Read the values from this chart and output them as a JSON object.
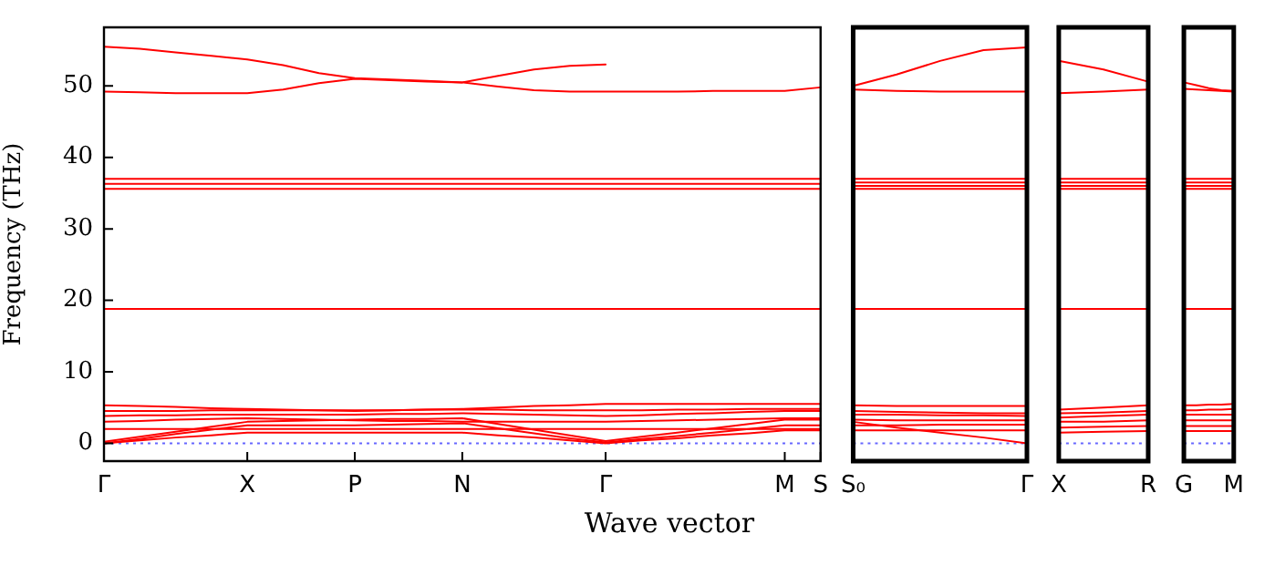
{
  "chart_data": [
    {
      "type": "line",
      "ylabel": "Frequency (THz)",
      "xlabel": "Wave vector",
      "marker": "none",
      "grid": false,
      "ylim": [
        -2.5,
        58.2
      ],
      "yticks": [
        0,
        10,
        20,
        30,
        40,
        50
      ],
      "categories": [
        "Γ",
        null,
        null,
        null,
        "X",
        null,
        null,
        "P",
        null,
        null,
        "N",
        null,
        null,
        null,
        "Γ",
        null,
        null,
        null,
        null,
        "M",
        "S"
      ],
      "ref_lines": [
        {
          "axis": "y",
          "value": 0,
          "label": null,
          "color": "#6666ff",
          "line_style": "dotted"
        }
      ],
      "series": [
        {
          "color": "#ff0000",
          "values": [
            55.5,
            55.2,
            54.7,
            54.2,
            53.7,
            52.9,
            51.8,
            51.1,
            50.9,
            50.7,
            50.5,
            51.4,
            52.3,
            52.8,
            53.0,
            null,
            null,
            null,
            null,
            null,
            null
          ]
        },
        {
          "color": "#ff0000",
          "values": [
            49.2,
            49.1,
            49.0,
            49.0,
            49.0,
            49.5,
            50.4,
            51.0,
            50.8,
            50.6,
            50.5,
            49.9,
            49.4,
            49.2,
            49.2,
            49.2,
            49.2,
            49.3,
            49.3,
            49.3,
            49.8
          ]
        },
        {
          "color": "#ff0000",
          "values": [
            37,
            37,
            37,
            37,
            37,
            37,
            37,
            37,
            37,
            37,
            37,
            37,
            37,
            37,
            37,
            37,
            37,
            37,
            37,
            37,
            37
          ]
        },
        {
          "color": "#ff0000",
          "values": [
            36.3,
            36.3,
            36.3,
            36.3,
            36.3,
            36.3,
            36.3,
            36.3,
            36.3,
            36.3,
            36.3,
            36.3,
            36.3,
            36.3,
            36.3,
            36.3,
            36.3,
            36.3,
            36.3,
            36.3,
            36.3
          ]
        },
        {
          "color": "#ff0000",
          "values": [
            35.6,
            35.6,
            35.6,
            35.6,
            35.6,
            35.6,
            35.6,
            35.6,
            35.6,
            35.6,
            35.6,
            35.6,
            35.6,
            35.6,
            35.6,
            35.6,
            35.6,
            35.6,
            35.6,
            35.6,
            35.6
          ]
        },
        {
          "color": "#ff0000",
          "values": [
            18.8,
            18.8,
            18.8,
            18.8,
            18.8,
            18.8,
            18.8,
            18.8,
            18.8,
            18.8,
            18.8,
            18.8,
            18.8,
            18.8,
            18.8,
            18.8,
            18.8,
            18.8,
            18.8,
            18.8,
            18.8
          ]
        },
        {
          "color": "#ff0000",
          "values": [
            0,
            0.4,
            0.8,
            1.1,
            1.5,
            1.5,
            1.5,
            1.5,
            1.5,
            1.5,
            1.5,
            1.1,
            0.8,
            0.4,
            0,
            0.4,
            0.7,
            1.1,
            1.4,
            1.8,
            1.8
          ]
        },
        {
          "color": "#ff0000",
          "values": [
            0,
            0.6,
            1.3,
            1.9,
            2.5,
            2.5,
            2.5,
            2.5,
            2.6,
            2.7,
            2.8,
            2.1,
            1.4,
            0.7,
            0.1,
            0.6,
            1.0,
            1.5,
            2.0,
            2.5,
            2.5
          ]
        },
        {
          "color": "#ff0000",
          "values": [
            0.2,
            0.9,
            1.6,
            2.3,
            3.0,
            3.1,
            3.2,
            3.3,
            3.4,
            3.4,
            3.5,
            2.7,
            1.9,
            1.1,
            0.3,
            0.9,
            1.5,
            2.1,
            2.7,
            3.3,
            3.3
          ]
        },
        {
          "color": "#ff0000",
          "values": [
            2.0,
            2.0,
            2.0,
            2.0,
            2.0,
            2.0,
            2.0,
            2.0,
            2.0,
            2.0,
            2.0,
            2.0,
            2.0,
            2.0,
            2.0,
            2.0,
            2.0,
            2.0,
            2.0,
            2.0,
            2.0
          ]
        },
        {
          "color": "#ff0000",
          "values": [
            3.0,
            3.1,
            3.3,
            3.4,
            3.5,
            3.4,
            3.3,
            3.2,
            3.1,
            3.1,
            3.0,
            3.0,
            3.0,
            3.0,
            3.0,
            3.1,
            3.2,
            3.3,
            3.4,
            3.5,
            3.5
          ]
        },
        {
          "color": "#ff0000",
          "values": [
            3.8,
            3.9,
            3.9,
            4.0,
            4.0,
            4.0,
            4.0,
            4.0,
            4.1,
            4.1,
            4.2,
            4.1,
            4.0,
            3.9,
            3.8,
            3.9,
            4.1,
            4.2,
            4.4,
            4.5,
            4.5
          ]
        },
        {
          "color": "#ff0000",
          "values": [
            4.5,
            4.5,
            4.5,
            4.6,
            4.6,
            4.6,
            4.6,
            4.6,
            4.6,
            4.7,
            4.7,
            4.7,
            4.6,
            4.6,
            4.6,
            4.6,
            4.7,
            4.7,
            4.8,
            4.8,
            4.8
          ]
        },
        {
          "color": "#ff0000",
          "values": [
            5.3,
            5.2,
            5.1,
            4.9,
            4.8,
            4.7,
            4.6,
            4.5,
            4.6,
            4.7,
            4.8,
            5.0,
            5.2,
            5.3,
            5.5,
            5.5,
            5.5,
            5.5,
            5.5,
            5.5,
            5.5
          ]
        }
      ]
    },
    {
      "type": "line",
      "marker": "none",
      "grid": false,
      "tick_labels": "x",
      "ylim": [
        -2.5,
        58.2
      ],
      "categories": [
        "S₀",
        null,
        null,
        null,
        "Γ"
      ],
      "ref_lines": [
        {
          "axis": "y",
          "value": 0,
          "label": null,
          "color": "#6666ff",
          "line_style": "dotted"
        }
      ],
      "series": [
        {
          "color": "#ff0000",
          "values": [
            50.0,
            51.6,
            53.5,
            55.0,
            55.4
          ]
        },
        {
          "color": "#ff0000",
          "values": [
            49.5,
            49.3,
            49.2,
            49.2,
            49.2
          ]
        },
        {
          "color": "#ff0000",
          "values": [
            37,
            37,
            37,
            37,
            37
          ]
        },
        {
          "color": "#ff0000",
          "values": [
            36.5,
            36.5,
            36.5,
            36.5,
            36.5
          ]
        },
        {
          "color": "#ff0000",
          "values": [
            36,
            36,
            36,
            36,
            36
          ]
        },
        {
          "color": "#ff0000",
          "values": [
            35.6,
            35.6,
            35.6,
            35.6,
            35.6
          ]
        },
        {
          "color": "#ff0000",
          "values": [
            18.8,
            18.8,
            18.8,
            18.8,
            18.8
          ]
        },
        {
          "color": "#ff0000",
          "values": [
            3.0,
            2.2,
            1.5,
            0.8,
            0
          ]
        },
        {
          "color": "#ff0000",
          "values": [
            1.8,
            1.8,
            1.8,
            1.8,
            1.8
          ]
        },
        {
          "color": "#ff0000",
          "values": [
            2.5,
            2.5,
            2.6,
            2.6,
            2.6
          ]
        },
        {
          "color": "#ff0000",
          "values": [
            3.3,
            3.2,
            3.2,
            3.2,
            3.2
          ]
        },
        {
          "color": "#ff0000",
          "values": [
            4.0,
            4.0,
            3.9,
            3.9,
            3.8
          ]
        },
        {
          "color": "#ff0000",
          "values": [
            4.5,
            4.4,
            4.3,
            4.2,
            4.2
          ]
        },
        {
          "color": "#ff0000",
          "values": [
            5.3,
            5.2,
            5.2,
            5.2,
            5.2
          ]
        }
      ]
    },
    {
      "type": "line",
      "marker": "none",
      "grid": false,
      "tick_labels": "x",
      "ylim": [
        -2.5,
        58.2
      ],
      "categories": [
        "X",
        null,
        "R"
      ],
      "ref_lines": [
        {
          "axis": "y",
          "value": 0,
          "label": null,
          "color": "#6666ff",
          "line_style": "dotted"
        }
      ],
      "series": [
        {
          "color": "#ff0000",
          "values": [
            53.5,
            52.3,
            50.6
          ]
        },
        {
          "color": "#ff0000",
          "values": [
            49.0,
            49.2,
            49.5
          ]
        },
        {
          "color": "#ff0000",
          "values": [
            37,
            37,
            37
          ]
        },
        {
          "color": "#ff0000",
          "values": [
            36.5,
            36.5,
            36.5
          ]
        },
        {
          "color": "#ff0000",
          "values": [
            36,
            36,
            36
          ]
        },
        {
          "color": "#ff0000",
          "values": [
            35.6,
            35.6,
            35.6
          ]
        },
        {
          "color": "#ff0000",
          "values": [
            18.8,
            18.8,
            18.8
          ]
        },
        {
          "color": "#ff0000",
          "values": [
            1.5,
            1.6,
            1.7
          ]
        },
        {
          "color": "#ff0000",
          "values": [
            2.2,
            2.3,
            2.4
          ]
        },
        {
          "color": "#ff0000",
          "values": [
            3.0,
            3.0,
            3.2
          ]
        },
        {
          "color": "#ff0000",
          "values": [
            3.6,
            3.8,
            4.0
          ]
        },
        {
          "color": "#ff0000",
          "values": [
            4.2,
            4.3,
            4.5
          ]
        },
        {
          "color": "#ff0000",
          "values": [
            4.7,
            5.0,
            5.3
          ]
        }
      ]
    },
    {
      "type": "line",
      "marker": "none",
      "grid": false,
      "tick_labels": "x",
      "ylim": [
        -2.5,
        58.2
      ],
      "categories": [
        "G",
        null,
        null,
        null,
        "M"
      ],
      "ref_lines": [
        {
          "axis": "y",
          "value": 0,
          "label": null,
          "color": "#6666ff",
          "line_style": "dotted"
        }
      ],
      "series": [
        {
          "color": "#ff0000",
          "values": [
            50.5,
            50.1,
            49.7,
            49.4,
            49.3
          ]
        },
        {
          "color": "#ff0000",
          "values": [
            49.6,
            49.5,
            49.4,
            49.3,
            49.2
          ]
        },
        {
          "color": "#ff0000",
          "values": [
            37,
            37,
            37,
            37,
            37
          ]
        },
        {
          "color": "#ff0000",
          "values": [
            36.5,
            36.5,
            36.5,
            36.5,
            36.5
          ]
        },
        {
          "color": "#ff0000",
          "values": [
            36,
            36,
            36,
            36,
            36
          ]
        },
        {
          "color": "#ff0000",
          "values": [
            35.6,
            35.6,
            35.6,
            35.6,
            35.6
          ]
        },
        {
          "color": "#ff0000",
          "values": [
            18.8,
            18.8,
            18.8,
            18.8,
            18.8
          ]
        },
        {
          "color": "#ff0000",
          "values": [
            1.7,
            1.7,
            1.7,
            1.7,
            1.7
          ]
        },
        {
          "color": "#ff0000",
          "values": [
            2.4,
            2.4,
            2.4,
            2.4,
            2.4
          ]
        },
        {
          "color": "#ff0000",
          "values": [
            3.2,
            3.2,
            3.2,
            3.2,
            3.2
          ]
        },
        {
          "color": "#ff0000",
          "values": [
            4.0,
            4.0,
            4.0,
            4.0,
            4.0
          ]
        },
        {
          "color": "#ff0000",
          "values": [
            4.6,
            4.6,
            4.7,
            4.7,
            4.8
          ]
        },
        {
          "color": "#ff0000",
          "values": [
            5.3,
            5.3,
            5.4,
            5.4,
            5.5
          ]
        }
      ]
    }
  ]
}
